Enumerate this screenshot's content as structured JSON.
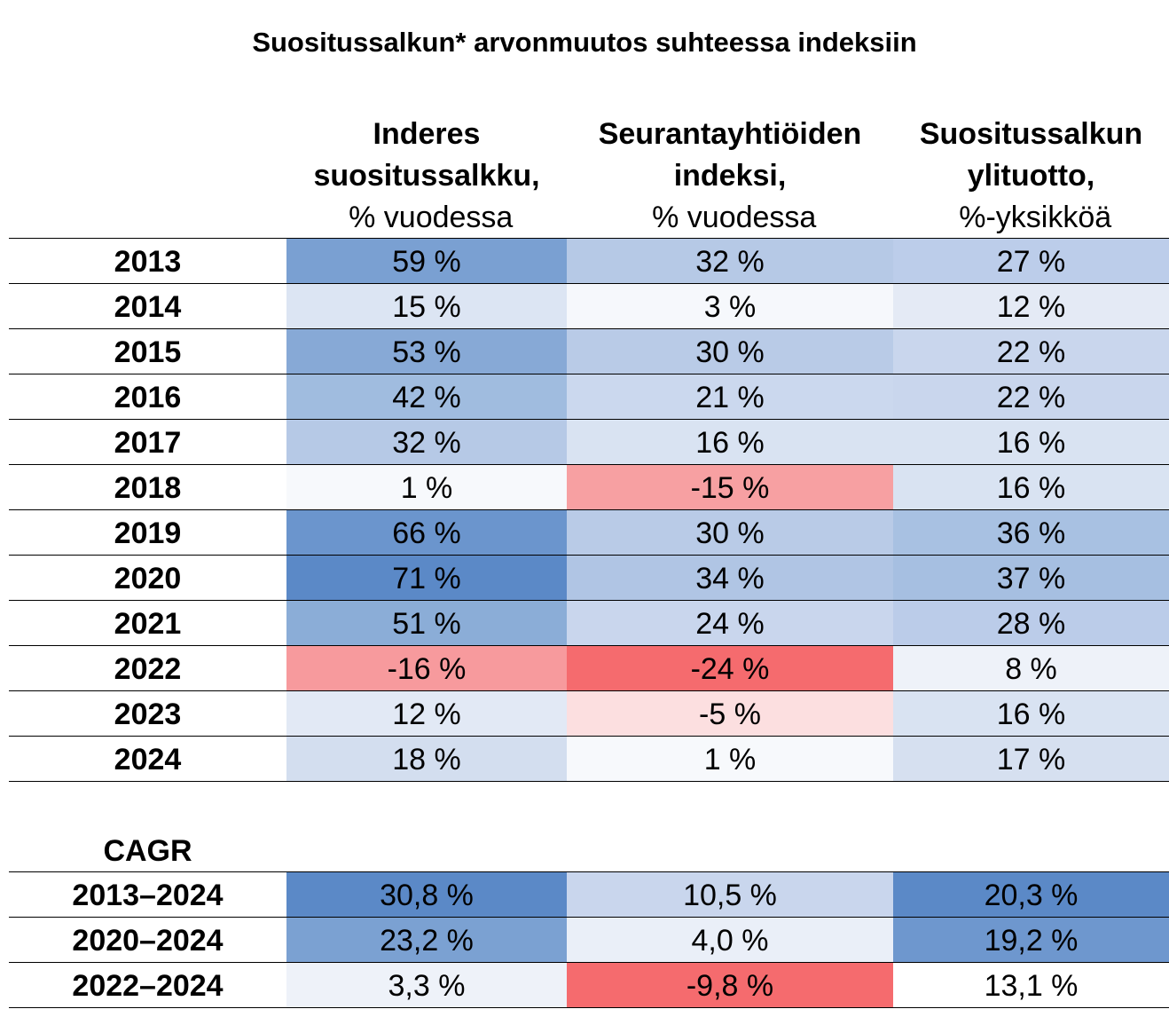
{
  "chart_data": {
    "type": "heatmap",
    "title": "Suositussalkun* arvonmuutos suhteessa indeksiin",
    "columns": [
      {
        "bold": "Inderes suositussalkku,",
        "normal": "% vuodessa"
      },
      {
        "bold": "Seurantayhtiöiden indeksi,",
        "normal": "% vuodessa"
      },
      {
        "bold": "Suositussalkun ylituotto,",
        "normal": "%-yksikköä"
      }
    ],
    "annual": {
      "rows": [
        {
          "label": "2013",
          "values": [
            "59 %",
            "32 %",
            "27 %"
          ],
          "nums": [
            59,
            32,
            27
          ]
        },
        {
          "label": "2014",
          "values": [
            "15 %",
            "3 %",
            "12 %"
          ],
          "nums": [
            15,
            3,
            12
          ]
        },
        {
          "label": "2015",
          "values": [
            "53 %",
            "30 %",
            "22 %"
          ],
          "nums": [
            53,
            30,
            22
          ]
        },
        {
          "label": "2016",
          "values": [
            "42 %",
            "21 %",
            "22 %"
          ],
          "nums": [
            42,
            21,
            22
          ]
        },
        {
          "label": "2017",
          "values": [
            "32 %",
            "16 %",
            "16 %"
          ],
          "nums": [
            32,
            16,
            16
          ]
        },
        {
          "label": "2018",
          "values": [
            "1 %",
            "-15 %",
            "16 %"
          ],
          "nums": [
            1,
            -15,
            16
          ]
        },
        {
          "label": "2019",
          "values": [
            "66 %",
            "30 %",
            "36 %"
          ],
          "nums": [
            66,
            30,
            36
          ]
        },
        {
          "label": "2020",
          "values": [
            "71 %",
            "34 %",
            "37 %"
          ],
          "nums": [
            71,
            34,
            37
          ]
        },
        {
          "label": "2021",
          "values": [
            "51 %",
            "24 %",
            "28 %"
          ],
          "nums": [
            51,
            24,
            28
          ]
        },
        {
          "label": "2022",
          "values": [
            "-16 %",
            "-24 %",
            "8 %"
          ],
          "nums": [
            -16,
            -24,
            8
          ]
        },
        {
          "label": "2023",
          "values": [
            "12 %",
            "-5 %",
            "16 %"
          ],
          "nums": [
            12,
            -5,
            16
          ]
        },
        {
          "label": "2024",
          "values": [
            "18 %",
            "1 %",
            "17 %"
          ],
          "nums": [
            18,
            1,
            17
          ]
        }
      ],
      "colors": [
        [
          "#7aa0d2",
          "#b6c9e6",
          "#bccdea"
        ],
        [
          "#dce5f3",
          "#f6f8fc",
          "#e4eaf5"
        ],
        [
          "#87a9d6",
          "#b9cbe7",
          "#c9d6ed"
        ],
        [
          "#a0bcdf",
          "#cbd8ee",
          "#c9d6ed"
        ],
        [
          "#b6c9e6",
          "#d9e3f2",
          "#d9e3f2"
        ],
        [
          "#f7f9fc",
          "#f7a0a2",
          "#d9e3f2"
        ],
        [
          "#6b95cd",
          "#b9cbe7",
          "#a8c1e2"
        ],
        [
          "#5b89c7",
          "#b0c5e4",
          "#a6bfe1"
        ],
        [
          "#8badd7",
          "#c9d6ed",
          "#bbcce9"
        ],
        [
          "#f79a9d",
          "#f56b6e",
          "#eef2f9"
        ],
        [
          "#e2e9f5",
          "#fcdfe0",
          "#d9e3f2"
        ],
        [
          "#d3deef",
          "#f7f9fc",
          "#d6e0f0"
        ]
      ]
    },
    "cagr": {
      "label": "CAGR",
      "rows": [
        {
          "label": "2013–2024",
          "values": [
            "30,8 %",
            "10,5 %",
            "20,3 %"
          ],
          "nums": [
            30.8,
            10.5,
            20.3
          ]
        },
        {
          "label": "2020–2024",
          "values": [
            "23,2 %",
            "4,0 %",
            "19,2 %"
          ],
          "nums": [
            23.2,
            4.0,
            19.2
          ]
        },
        {
          "label": "2022–2024",
          "values": [
            "3,3 %",
            "-9,8 %",
            "13,1 %"
          ],
          "nums": [
            3.3,
            -9.8,
            13.1
          ]
        }
      ],
      "colors": [
        [
          "#5b89c7",
          "#c9d6ed",
          "#5b89c7"
        ],
        [
          "#7ba1d2",
          "#eaeff8",
          "#6e97ce"
        ],
        [
          "#eef2f9",
          "#f56b6e",
          "#ffffff"
        ]
      ]
    }
  }
}
